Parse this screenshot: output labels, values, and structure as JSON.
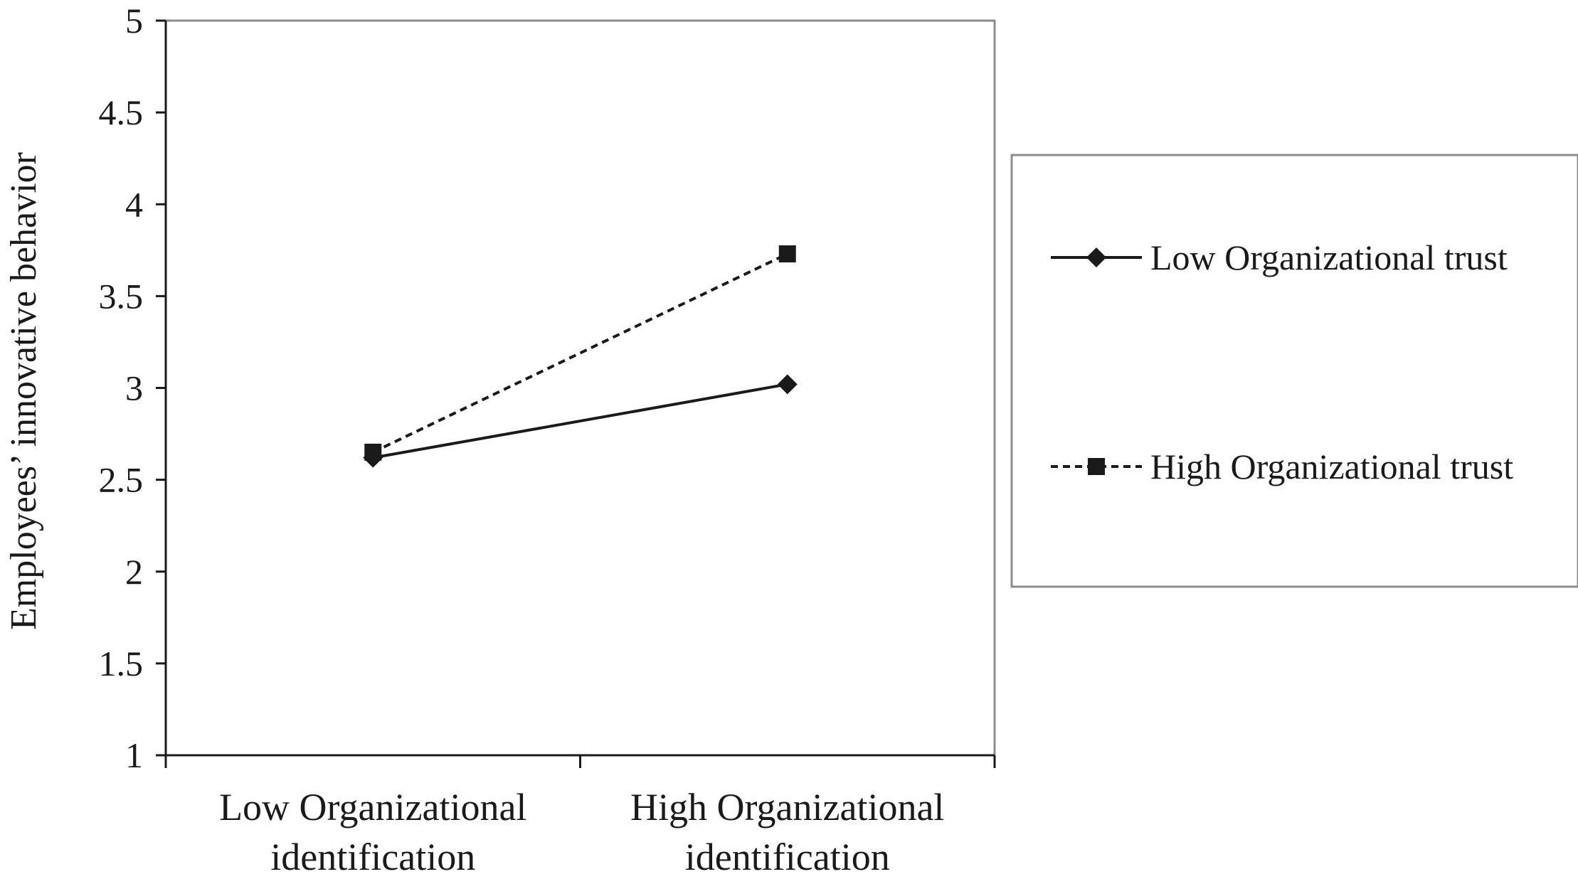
{
  "chart_data": {
    "type": "line",
    "categories": [
      [
        "Low Organizational",
        "identification"
      ],
      [
        "High Organizational",
        "identification"
      ]
    ],
    "ylabel": "Employees’ innovative behavior",
    "ylim": [
      1,
      5
    ],
    "yticks": [
      "1",
      "1.5",
      "2",
      "2.5",
      "3",
      "3.5",
      "4",
      "4.5",
      "5"
    ],
    "grid": false,
    "legend_position": "right",
    "series": [
      {
        "name": "Low Organizational trust",
        "values": [
          2.62,
          3.02
        ],
        "line_style": "solid",
        "marker": "diamond",
        "color": "#1a1a1a"
      },
      {
        "name": "High Organizational trust",
        "values": [
          2.65,
          3.73
        ],
        "line_style": "dashed",
        "marker": "square",
        "color": "#1a1a1a"
      }
    ]
  }
}
